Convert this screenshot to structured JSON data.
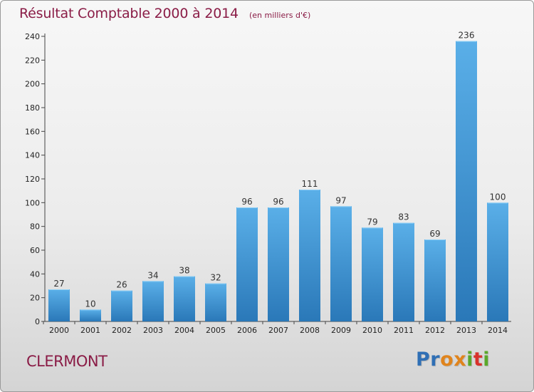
{
  "header": {
    "title": "Résultat Comptable 2000 à 2014",
    "unit_note": "(en milliers d'€)"
  },
  "footer": {
    "city": "CLERMONT",
    "brand": "Proxiti"
  },
  "colors": {
    "title": "#8a1c46",
    "bar_top": "#5aafe8",
    "bar_bottom": "#2a78b8",
    "logo_letters": [
      "#2f6fb5",
      "#2f6fb5",
      "#e0841c",
      "#e0841c",
      "#5aa82a",
      "#d8322c",
      "#5aa82a"
    ]
  },
  "chart_data": {
    "type": "bar",
    "title": "Résultat Comptable 2000 à 2014",
    "subtitle": "(en milliers d'€)",
    "xlabel": "",
    "ylabel": "",
    "categories": [
      "2000",
      "2001",
      "2002",
      "2003",
      "2004",
      "2005",
      "2006",
      "2007",
      "2008",
      "2009",
      "2010",
      "2011",
      "2012",
      "2013",
      "2014"
    ],
    "values": [
      27,
      10,
      26,
      34,
      38,
      32,
      96,
      96,
      111,
      97,
      79,
      83,
      69,
      236,
      100
    ],
    "ylim": [
      0,
      240
    ],
    "yticks": [
      0,
      20,
      40,
      60,
      80,
      100,
      120,
      140,
      160,
      180,
      200,
      220,
      240
    ],
    "grid": false,
    "legend": "none"
  }
}
